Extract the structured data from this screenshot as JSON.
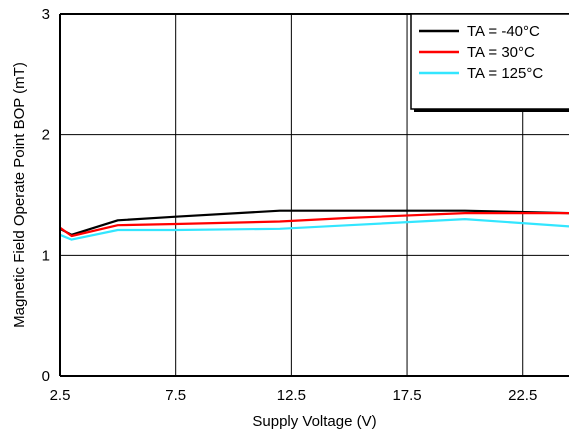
{
  "chart_data": {
    "type": "line",
    "title": "",
    "xlabel": "Supply Voltage (V)",
    "ylabel": "Magnetic Field Operate Point BOP (mT)",
    "xlim": [
      2.5,
      24.5
    ],
    "ylim": [
      0,
      3
    ],
    "xticks": [
      2.5,
      7.5,
      12.5,
      17.5,
      22.5
    ],
    "xtick_labels": [
      "2.5",
      "7.5",
      "12.5",
      "17.5",
      "22.5"
    ],
    "yticks": [
      0,
      1,
      2,
      3
    ],
    "ytick_labels": [
      "0",
      "1",
      "2",
      "3"
    ],
    "grid": true,
    "legend_position": "top-right",
    "series": [
      {
        "name": "TA = -40°C",
        "color": "#000000",
        "x": [
          2.5,
          3,
          5,
          7.5,
          12,
          15,
          20,
          24.5
        ],
        "y": [
          1.22,
          1.17,
          1.29,
          1.32,
          1.37,
          1.37,
          1.37,
          1.35
        ]
      },
      {
        "name": "TA = 30°C",
        "color": "#ff0000",
        "x": [
          2.5,
          3,
          5,
          7.5,
          12,
          15,
          20,
          24.5
        ],
        "y": [
          1.23,
          1.16,
          1.25,
          1.26,
          1.28,
          1.31,
          1.35,
          1.35
        ]
      },
      {
        "name": "TA = 125°C",
        "color": "#33e6ff",
        "x": [
          2.5,
          3,
          5,
          7.5,
          12,
          15,
          20,
          24.5
        ],
        "y": [
          1.17,
          1.13,
          1.21,
          1.21,
          1.22,
          1.25,
          1.3,
          1.24
        ]
      }
    ]
  }
}
